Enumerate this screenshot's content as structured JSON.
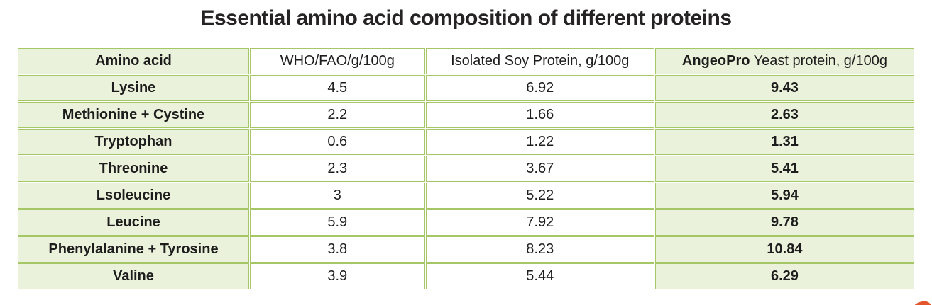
{
  "title": "Essential amino acid composition of different proteins",
  "colors": {
    "table_border": "#a5c765",
    "cell_shading": "#ebf2db",
    "text": "#1d1d1d",
    "accent_swoosh": "#e4552b"
  },
  "table": {
    "columns": [
      {
        "label": "Amino acid"
      },
      {
        "label": "WHO/FAO/g/100g"
      },
      {
        "label": "Isolated Soy Protein, g/100g"
      },
      {
        "brand": "AngeoPro",
        "rest": " Yeast protein, g/100g"
      }
    ],
    "rows": [
      {
        "amino_acid": "Lysine",
        "who_fao": "4.5",
        "soy": "6.92",
        "angeopro": "9.43"
      },
      {
        "amino_acid": "Methionine + Cystine",
        "who_fao": "2.2",
        "soy": "1.66",
        "angeopro": "2.63"
      },
      {
        "amino_acid": "Tryptophan",
        "who_fao": "0.6",
        "soy": "1.22",
        "angeopro": "1.31"
      },
      {
        "amino_acid": "Threonine",
        "who_fao": "2.3",
        "soy": "3.67",
        "angeopro": "5.41"
      },
      {
        "amino_acid": "Lsoleucine",
        "who_fao": "3",
        "soy": "5.22",
        "angeopro": "5.94"
      },
      {
        "amino_acid": "Leucine",
        "who_fao": "5.9",
        "soy": "7.92",
        "angeopro": "9.78"
      },
      {
        "amino_acid": "Phenylalanine + Tyrosine",
        "who_fao": "3.8",
        "soy": "8.23",
        "angeopro": "10.84"
      },
      {
        "amino_acid": "Valine",
        "who_fao": "3.9",
        "soy": "5.44",
        "angeopro": "6.29"
      }
    ]
  }
}
